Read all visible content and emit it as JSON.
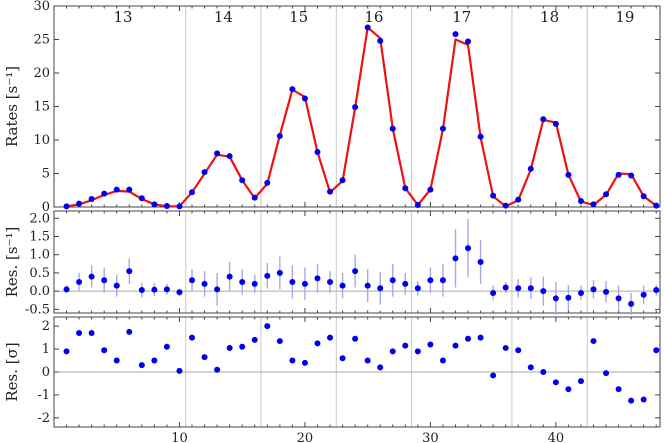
{
  "chart_data": [
    {
      "type": "scatter",
      "panel": "rates",
      "ylabel": "Rates [s⁻¹]",
      "xlim": [
        0,
        48.3
      ],
      "ylim": [
        0,
        30
      ],
      "yticks": [
        0,
        5,
        10,
        15,
        20,
        25,
        30
      ],
      "ytick_labels": [
        "0",
        "5",
        "10",
        "15",
        "20",
        "25",
        "30"
      ],
      "group_separators": [
        10.5,
        16.5,
        22.5,
        28.5,
        36.5,
        42.5
      ],
      "group_labels": [
        {
          "label": "13",
          "x": 5.5
        },
        {
          "label": "14",
          "x": 13.5
        },
        {
          "label": "15",
          "x": 19.5
        },
        {
          "label": "16",
          "x": 25.5
        },
        {
          "label": "17",
          "x": 32.5
        },
        {
          "label": "18",
          "x": 39.5
        },
        {
          "label": "19",
          "x": 45.5
        }
      ],
      "colors": {
        "points": "#0000ee",
        "fit": "#ee1111",
        "separator": "#c8c8c8"
      },
      "series": [
        {
          "kind": "points",
          "x": [
            1,
            2,
            3,
            4,
            5,
            6,
            7,
            8,
            9,
            10,
            11,
            12,
            13,
            14,
            15,
            16,
            17,
            18,
            19,
            20,
            21,
            22,
            23,
            24,
            25,
            26,
            27,
            28,
            29,
            30,
            31,
            32,
            33,
            34,
            35,
            36,
            37,
            38,
            39,
            40,
            41,
            42,
            43,
            44,
            45,
            46,
            47,
            48
          ],
          "y": [
            0.1,
            0.5,
            1.2,
            2.0,
            2.6,
            2.6,
            1.3,
            0.4,
            0.15,
            0.1,
            2.2,
            5.2,
            8.0,
            7.6,
            4.0,
            1.4,
            3.6,
            10.6,
            17.6,
            16.2,
            8.2,
            2.3,
            4.0,
            14.9,
            26.8,
            24.8,
            11.7,
            2.8,
            0.3,
            2.6,
            11.7,
            25.8,
            24.7,
            10.5,
            1.7,
            0.2,
            1.1,
            5.7,
            13.1,
            12.4,
            4.8,
            0.9,
            0.4,
            1.9,
            4.8,
            4.7,
            1.6,
            0.2
          ]
        },
        {
          "kind": "fit",
          "x": [
            1,
            2,
            3,
            4,
            5,
            6,
            7,
            8,
            9,
            10,
            11,
            12,
            13,
            14,
            15,
            16,
            17,
            18,
            19,
            20,
            21,
            22,
            23,
            24,
            25,
            26,
            27,
            28,
            29,
            30,
            31,
            32,
            33,
            34,
            35,
            36,
            37,
            38,
            39,
            40,
            41,
            42,
            43,
            44,
            45,
            46,
            47,
            48
          ],
          "y": [
            0.1,
            0.4,
            1.0,
            1.8,
            2.4,
            2.3,
            1.2,
            0.4,
            0.1,
            0.1,
            2.2,
            5.0,
            7.8,
            7.5,
            4.0,
            1.3,
            3.5,
            10.7,
            17.5,
            16.4,
            8.2,
            2.2,
            3.9,
            14.8,
            26.8,
            25.2,
            11.7,
            2.8,
            0.3,
            2.6,
            11.6,
            25.0,
            24.2,
            10.4,
            1.6,
            0.1,
            1.0,
            5.6,
            13.0,
            12.6,
            4.8,
            0.8,
            0.3,
            1.8,
            5.0,
            4.9,
            1.6,
            0.2
          ]
        }
      ]
    },
    {
      "type": "scatter",
      "panel": "residuals",
      "ylabel": "Res. [s⁻¹]",
      "xlim": [
        0,
        48.3
      ],
      "ylim": [
        -0.6,
        2.2
      ],
      "yticks": [
        -0.5,
        0.0,
        0.5,
        1.0,
        1.5,
        2.0
      ],
      "ytick_labels": [
        "-0.5",
        "0.0",
        "0.5",
        "1.0",
        "1.5",
        "2.0"
      ],
      "zero_line": 0,
      "colors": {
        "points": "#0000ee",
        "errorbars": "#a8a8e8",
        "separator": "#c8c8c8",
        "zero_line": "#aaaaaa"
      },
      "x": [
        1,
        2,
        3,
        4,
        5,
        6,
        7,
        8,
        9,
        10,
        11,
        12,
        13,
        14,
        15,
        16,
        17,
        18,
        19,
        20,
        21,
        22,
        23,
        24,
        25,
        26,
        27,
        28,
        29,
        30,
        31,
        32,
        33,
        34,
        35,
        36,
        37,
        38,
        39,
        40,
        41,
        42,
        43,
        44,
        45,
        46,
        47,
        48
      ],
      "y": [
        0.05,
        0.25,
        0.4,
        0.3,
        0.15,
        0.55,
        0.03,
        0.04,
        0.05,
        -0.03,
        0.3,
        0.2,
        0.05,
        0.4,
        0.25,
        0.2,
        0.42,
        0.5,
        0.25,
        0.2,
        0.35,
        0.25,
        0.15,
        0.55,
        0.15,
        0.08,
        0.3,
        0.2,
        0.08,
        0.3,
        0.3,
        0.9,
        1.18,
        0.8,
        -0.05,
        0.1,
        0.08,
        0.08,
        0.0,
        -0.2,
        -0.18,
        -0.05,
        0.05,
        -0.02,
        -0.2,
        -0.35,
        -0.1,
        0.03
      ],
      "err": [
        0.1,
        0.25,
        0.3,
        0.35,
        0.3,
        0.35,
        0.2,
        0.18,
        0.15,
        0.1,
        0.3,
        0.35,
        0.45,
        0.4,
        0.35,
        0.25,
        0.35,
        0.45,
        0.45,
        0.45,
        0.4,
        0.3,
        0.35,
        0.45,
        0.45,
        0.45,
        0.45,
        0.3,
        0.2,
        0.35,
        0.45,
        0.8,
        0.8,
        0.6,
        0.2,
        0.15,
        0.25,
        0.3,
        0.4,
        0.45,
        0.35,
        0.2,
        0.25,
        0.3,
        0.35,
        0.3,
        0.25,
        0.15
      ]
    },
    {
      "type": "scatter",
      "panel": "normalized_residuals",
      "ylabel": "Res. [σ]",
      "xlabel": "",
      "xlim": [
        0,
        48.3
      ],
      "ylim": [
        -2.4,
        2.4
      ],
      "yticks": [
        -2,
        -1,
        0,
        1,
        2
      ],
      "ytick_labels": [
        "-2",
        "-1",
        "0",
        "1",
        "2"
      ],
      "xticks": [
        10,
        20,
        30,
        40
      ],
      "xtick_labels": [
        "10",
        "20",
        "30",
        "40"
      ],
      "zero_line": 0,
      "colors": {
        "points": "#0000ee",
        "separator": "#c8c8c8",
        "zero_line": "#aaaaaa"
      },
      "x": [
        1,
        2,
        3,
        4,
        5,
        6,
        7,
        8,
        9,
        10,
        11,
        12,
        13,
        14,
        15,
        16,
        17,
        18,
        19,
        20,
        21,
        22,
        23,
        24,
        25,
        26,
        27,
        28,
        29,
        30,
        31,
        32,
        33,
        34,
        35,
        36,
        37,
        38,
        39,
        40,
        41,
        42,
        43,
        44,
        45,
        46,
        47,
        48
      ],
      "y": [
        0.9,
        1.7,
        1.7,
        0.95,
        0.5,
        1.75,
        0.3,
        0.5,
        1.1,
        0.05,
        1.5,
        0.65,
        0.1,
        1.05,
        1.1,
        1.4,
        2.0,
        1.35,
        0.5,
        0.4,
        1.25,
        1.5,
        0.6,
        1.45,
        0.5,
        0.2,
        0.9,
        1.15,
        0.9,
        1.2,
        0.5,
        1.15,
        1.45,
        1.5,
        -0.15,
        1.05,
        0.95,
        0.2,
        0.0,
        -0.45,
        -0.75,
        -0.4,
        1.35,
        -0.05,
        -0.75,
        -1.25,
        -1.2,
        0.95
      ]
    }
  ]
}
